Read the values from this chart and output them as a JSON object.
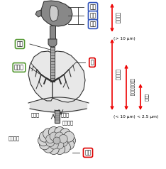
{
  "bg_color": "#ffffff",
  "labels": {
    "nasal": "鼻腔",
    "pharynx": "咽頭",
    "larynx": "喉頭",
    "trachea": "気管",
    "bronchus": "気管支",
    "lung": "肺",
    "pulmonary_artery": "肺動脈",
    "pulmonary_vein": "肺静脈",
    "bronchiole": "細気管支",
    "capillary": "毛細血管",
    "alveoli": "肺胞"
  },
  "right_labels": {
    "upper_airway": "上部気道",
    "upper_size": "(> 10 μm)",
    "lower_airway": "下部気道",
    "lower_size": "(< 10 μm)",
    "terminal": "末末細気管領域",
    "respirable": "呼吸域",
    "resp_size": "< 2.5 μm)"
  },
  "box_blue": "#3355bb",
  "box_green": "#559933",
  "box_red": "#dd0000",
  "arrow_color": "#ee0000",
  "lc": "#303030",
  "fc_body": "#888888",
  "fc_lung": "#e8e8e8",
  "fc_label_bg": "#ffffff"
}
